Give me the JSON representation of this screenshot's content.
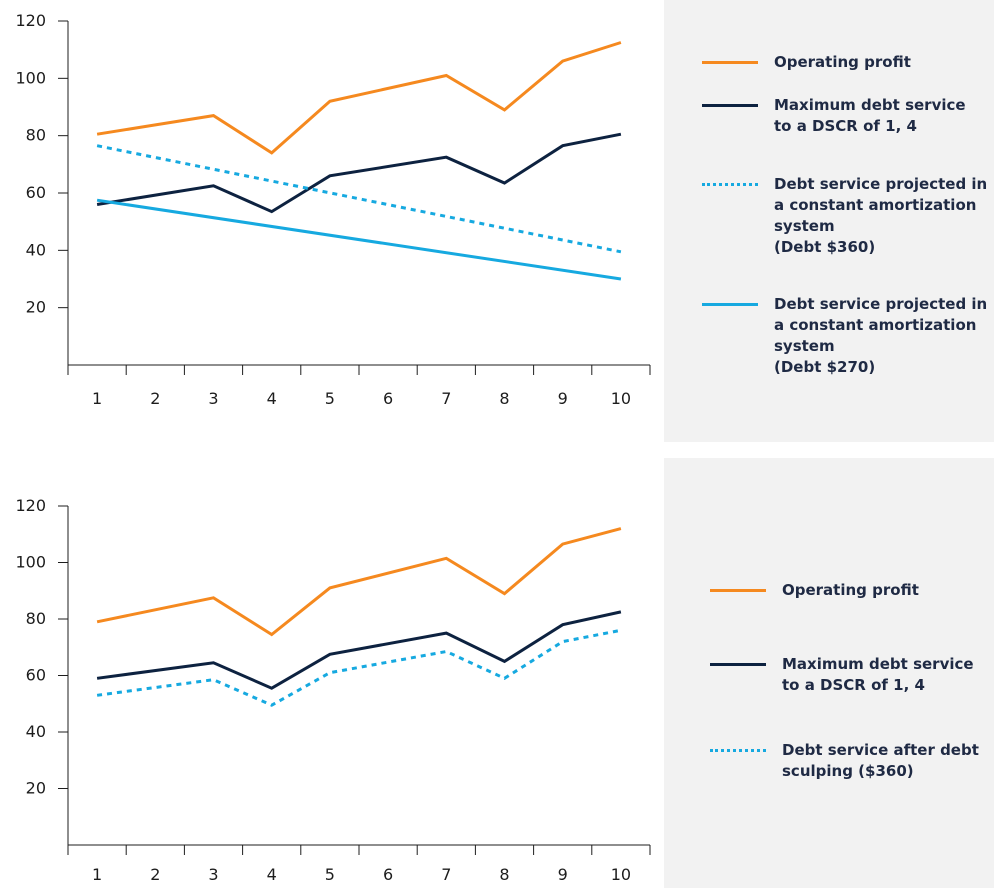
{
  "chart_data": [
    {
      "type": "line",
      "categories": [
        "1",
        "2",
        "3",
        "4",
        "5",
        "6",
        "7",
        "8",
        "9",
        "10"
      ],
      "x": [
        1,
        2,
        3,
        4,
        5,
        6,
        7,
        8,
        9,
        10
      ],
      "xlim": [
        0.5,
        10.5
      ],
      "ylim": [
        0,
        120
      ],
      "yticks": [
        20,
        40,
        60,
        80,
        100,
        120
      ],
      "grid": false,
      "legend_position": "right",
      "series": [
        {
          "name": "Operating profit",
          "color": "#f5891f",
          "style": "solid",
          "points": [
            [
              1,
              80.5
            ],
            [
              3,
              87
            ],
            [
              4,
              74
            ],
            [
              5,
              92
            ],
            [
              7,
              101
            ],
            [
              8,
              89
            ],
            [
              9,
              106
            ],
            [
              10,
              112.5
            ]
          ]
        },
        {
          "name": "Maximum debt service\nto a DSCR of 1, 4",
          "color": "#0d2240",
          "style": "solid",
          "points": [
            [
              1,
              56
            ],
            [
              3,
              62.5
            ],
            [
              4,
              53.5
            ],
            [
              5,
              66
            ],
            [
              7,
              72.5
            ],
            [
              8,
              63.5
            ],
            [
              9,
              76.5
            ],
            [
              10,
              80.5
            ]
          ]
        },
        {
          "name": "Debt service projected in\na constant amortization\nsystem\n(Debt $360)",
          "color": "#16a9e0",
          "style": "dotted",
          "points": [
            [
              1,
              76.5
            ],
            [
              10,
              39.5
            ]
          ]
        },
        {
          "name": "Debt service projected in\na constant amortization\nsystem\n(Debt $270)",
          "color": "#16a9e0",
          "style": "solid",
          "points": [
            [
              1,
              57.5
            ],
            [
              10,
              30
            ]
          ]
        }
      ]
    },
    {
      "type": "line",
      "categories": [
        "1",
        "2",
        "3",
        "4",
        "5",
        "6",
        "7",
        "8",
        "9",
        "10"
      ],
      "x": [
        1,
        2,
        3,
        4,
        5,
        6,
        7,
        8,
        9,
        10
      ],
      "xlim": [
        0.5,
        10.5
      ],
      "ylim": [
        0,
        120
      ],
      "yticks": [
        20,
        40,
        60,
        80,
        100,
        120
      ],
      "grid": false,
      "legend_position": "right",
      "series": [
        {
          "name": "Operating profit",
          "color": "#f5891f",
          "style": "solid",
          "points": [
            [
              1,
              79
            ],
            [
              3,
              87.5
            ],
            [
              4,
              74.5
            ],
            [
              5,
              91
            ],
            [
              7,
              101.5
            ],
            [
              8,
              89
            ],
            [
              9,
              106.5
            ],
            [
              10,
              112
            ]
          ]
        },
        {
          "name": "Maximum debt service\nto a DSCR of 1, 4",
          "color": "#0d2240",
          "style": "solid",
          "points": [
            [
              1,
              59
            ],
            [
              3,
              64.5
            ],
            [
              4,
              55.5
            ],
            [
              5,
              67.5
            ],
            [
              7,
              75
            ],
            [
              8,
              65
            ],
            [
              9,
              78
            ],
            [
              10,
              82.5
            ]
          ]
        },
        {
          "name": "Debt service after debt\nsculping ($360)",
          "color": "#16a9e0",
          "style": "dotted",
          "points": [
            [
              1,
              53
            ],
            [
              3,
              58.5
            ],
            [
              4,
              49.5
            ],
            [
              5,
              61
            ],
            [
              7,
              68.5
            ],
            [
              8,
              59
            ],
            [
              9,
              72
            ],
            [
              10,
              76
            ]
          ]
        }
      ]
    }
  ]
}
